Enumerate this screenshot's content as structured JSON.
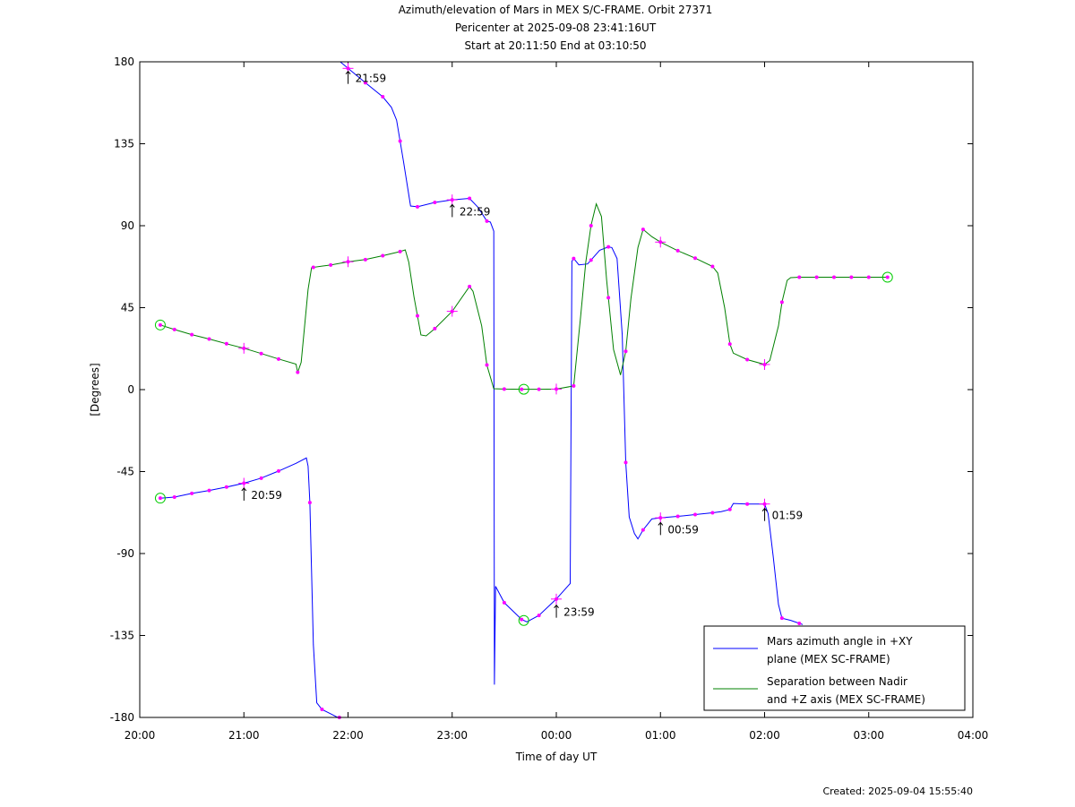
{
  "chart_data": {
    "type": "line",
    "title_lines": [
      "Azimuth/elevation of Mars in MEX S/C-FRAME.  Orbit 27371",
      "Pericenter at 2025-09-08 23:41:16UT",
      "Start at 20:11:50 End at 03:10:50"
    ],
    "xlabel": "Time of day UT",
    "ylabel": "[Degrees]",
    "xlim": [
      "20:00",
      "04:00"
    ],
    "ylim": [
      -180,
      180
    ],
    "x_ticks": [
      "20:00",
      "21:00",
      "22:00",
      "23:00",
      "00:00",
      "01:00",
      "02:00",
      "03:00",
      "04:00"
    ],
    "y_ticks": [
      "180",
      "135",
      "90",
      "45",
      "0",
      "-45",
      "-90",
      "-135",
      "-180"
    ],
    "grid": false,
    "legend_position": "bottom-right",
    "series": [
      {
        "name": "Mars azimuth angle in +XY plane (MEX SC-FRAME)",
        "legend_lines": [
          "Mars azimuth angle in +XY",
          "plane (MEX SC-FRAME)"
        ],
        "color": "#0000ff",
        "points": [
          [
            "20:11:50",
            -59.6
          ],
          [
            "20:20",
            -59
          ],
          [
            "20:30",
            -57
          ],
          [
            "20:40",
            -55.4
          ],
          [
            "20:50",
            -53.5
          ],
          [
            "21:00",
            -51.4
          ],
          [
            "21:10",
            -48.6
          ],
          [
            "21:20",
            -44.7
          ],
          [
            "21:30",
            -40.5
          ],
          [
            "21:36",
            -37.5
          ],
          [
            "21:37",
            -42
          ],
          [
            "21:38",
            -62
          ],
          [
            "21:40",
            -140
          ],
          [
            "21:42",
            -172
          ],
          [
            "21:45",
            -175.6
          ],
          [
            "21:50",
            -178
          ],
          [
            "21:54",
            -180
          ],
          [
            "21:55",
            -180
          ],
          [
            "21:55:30",
            180
          ],
          [
            "22:00",
            176.4
          ],
          [
            "22:10",
            168.5
          ],
          [
            "22:20",
            160.8
          ],
          [
            "22:25",
            155
          ],
          [
            "22:28",
            148
          ],
          [
            "22:32",
            125
          ],
          [
            "22:36",
            100.8
          ],
          [
            "22:40",
            100.4
          ],
          [
            "22:50",
            102.8
          ],
          [
            "23:00",
            104.2
          ],
          [
            "23:10",
            105
          ],
          [
            "23:15",
            100
          ],
          [
            "23:20",
            92.5
          ],
          [
            "23:22",
            92
          ],
          [
            "23:24",
            87
          ],
          [
            "23:24:20",
            -162
          ],
          [
            "23:25",
            -108
          ],
          [
            "23:30",
            -117
          ],
          [
            "23:40",
            -126.2
          ],
          [
            "23:43",
            -127.5
          ],
          [
            "23:50",
            -124
          ],
          [
            "24:00",
            -115
          ],
          [
            "24:08",
            -106.5
          ],
          [
            "24:09",
            70.5
          ],
          [
            "24:10",
            72
          ],
          [
            "24:13",
            68.5
          ],
          [
            "24:18",
            69
          ],
          [
            "24:25",
            76.5
          ],
          [
            "24:30",
            78.4
          ],
          [
            "24:32",
            78
          ],
          [
            "24:35",
            72
          ],
          [
            "24:38",
            30
          ],
          [
            "24:40",
            -40
          ],
          [
            "24:42",
            -70
          ],
          [
            "24:45",
            -79
          ],
          [
            "24:47",
            -82
          ],
          [
            "24:50",
            -77
          ],
          [
            "24:55",
            -71
          ],
          [
            "25:00",
            -70.4
          ],
          [
            "25:10",
            -69.6
          ],
          [
            "25:20",
            -68.6
          ],
          [
            "25:30",
            -67.6
          ],
          [
            "25:35",
            -67
          ],
          [
            "25:40",
            -65.8
          ],
          [
            "25:42",
            -62.5
          ],
          [
            "25:50",
            -62.8
          ],
          [
            "26:00",
            -62.8
          ],
          [
            "26:02",
            -68
          ],
          [
            "26:05",
            -92
          ],
          [
            "26:08",
            -118
          ],
          [
            "26:10",
            -125.5
          ],
          [
            "26:15",
            -126.7
          ],
          [
            "26:22",
            -129
          ]
        ],
        "markers": [
          "20:11:50",
          "20:20",
          "20:30",
          "20:40",
          "20:50",
          "21:00",
          "21:10",
          "21:20",
          "21:38",
          "21:45",
          "21:55",
          "22:00",
          "22:10",
          "22:20",
          "22:30",
          "22:40",
          "22:50",
          "23:00",
          "23:10",
          "23:20",
          "23:30",
          "23:40",
          "23:50",
          "24:00",
          "24:10",
          "24:20",
          "24:30",
          "24:40",
          "24:50",
          "25:00",
          "25:10",
          "25:20",
          "25:30",
          "25:40",
          "25:50",
          "26:00",
          "26:10",
          "26:20"
        ]
      },
      {
        "name": "Separation between Nadir and +Z axis (MEX SC-FRAME)",
        "legend_lines": [
          "Separation between Nadir",
          "and +Z axis (MEX SC-FRAME)"
        ],
        "color": "#008000",
        "points": [
          [
            "20:11:50",
            35.5
          ],
          [
            "20:20",
            33
          ],
          [
            "20:30",
            30.2
          ],
          [
            "20:40",
            27.8
          ],
          [
            "20:50",
            25.2
          ],
          [
            "21:00",
            22.7
          ],
          [
            "21:10",
            19.8
          ],
          [
            "21:20",
            16.8
          ],
          [
            "21:30",
            14
          ],
          [
            "21:31",
            9.5
          ],
          [
            "21:33",
            15
          ],
          [
            "21:37",
            55
          ],
          [
            "21:39",
            67
          ],
          [
            "21:45",
            67.8
          ],
          [
            "21:50",
            68.4
          ],
          [
            "22:00",
            70.2
          ],
          [
            "22:10",
            71.4
          ],
          [
            "22:20",
            73.5
          ],
          [
            "22:30",
            75.8
          ],
          [
            "22:33",
            76.7
          ],
          [
            "22:35",
            70
          ],
          [
            "22:38",
            51
          ],
          [
            "22:42",
            30
          ],
          [
            "22:45",
            29.5
          ],
          [
            "22:50",
            33.5
          ],
          [
            "23:00",
            43
          ],
          [
            "23:10",
            56.6
          ],
          [
            "23:12",
            54
          ],
          [
            "23:17",
            35
          ],
          [
            "23:20",
            13.5
          ],
          [
            "23:24",
            0.5
          ],
          [
            "23:30",
            0.3
          ],
          [
            "23:40",
            0.2
          ],
          [
            "23:50",
            0.2
          ],
          [
            "24:00",
            0.3
          ],
          [
            "24:10",
            2
          ],
          [
            "24:14",
            40
          ],
          [
            "24:17",
            70
          ],
          [
            "24:20",
            90
          ],
          [
            "24:23",
            102
          ],
          [
            "24:26",
            95
          ],
          [
            "24:29",
            60
          ],
          [
            "24:33",
            22
          ],
          [
            "24:37",
            8
          ],
          [
            "24:40",
            21
          ],
          [
            "24:43",
            50
          ],
          [
            "24:47",
            78
          ],
          [
            "24:50",
            88
          ],
          [
            "24:55",
            84
          ],
          [
            "25:00",
            81
          ],
          [
            "25:10",
            76.3
          ],
          [
            "25:20",
            72.2
          ],
          [
            "25:30",
            67.6
          ],
          [
            "25:33",
            64
          ],
          [
            "25:37",
            45
          ],
          [
            "25:40",
            25
          ],
          [
            "25:42",
            20
          ],
          [
            "25:50",
            16.5
          ],
          [
            "26:00",
            13.8
          ],
          [
            "26:03",
            16
          ],
          [
            "26:08",
            35
          ],
          [
            "26:10",
            48
          ],
          [
            "26:13",
            60
          ],
          [
            "26:15",
            61.5
          ],
          [
            "26:20",
            61.7
          ],
          [
            "26:30",
            61.7
          ],
          [
            "26:40",
            61.7
          ],
          [
            "26:50",
            61.7
          ],
          [
            "27:00",
            61.7
          ],
          [
            "27:10:50",
            61.7
          ]
        ],
        "markers": [
          "20:11:50",
          "20:20",
          "20:30",
          "20:40",
          "20:50",
          "21:00",
          "21:10",
          "21:20",
          "21:31",
          "21:40",
          "21:50",
          "22:00",
          "22:10",
          "22:20",
          "22:30",
          "22:40",
          "22:50",
          "23:00",
          "23:10",
          "23:20",
          "23:30",
          "23:40",
          "23:50",
          "24:00",
          "24:10",
          "24:20",
          "24:30",
          "24:40",
          "24:50",
          "25:00",
          "25:10",
          "25:20",
          "25:30",
          "25:40",
          "25:50",
          "26:00",
          "26:10",
          "26:20",
          "26:30",
          "26:40",
          "26:50",
          "27:00",
          "27:10:50"
        ]
      }
    ],
    "hour_markers": [
      {
        "series": 0,
        "time": "21:00"
      },
      {
        "series": 0,
        "time": "22:00"
      },
      {
        "series": 0,
        "time": "23:00"
      },
      {
        "series": 0,
        "time": "24:00"
      },
      {
        "series": 0,
        "time": "25:00"
      },
      {
        "series": 0,
        "time": "26:00"
      },
      {
        "series": 1,
        "time": "21:00"
      },
      {
        "series": 1,
        "time": "22:00"
      },
      {
        "series": 1,
        "time": "23:00"
      },
      {
        "series": 1,
        "time": "24:00"
      },
      {
        "series": 1,
        "time": "25:00"
      },
      {
        "series": 1,
        "time": "26:00"
      }
    ],
    "event_circles": [
      {
        "series": 0,
        "time": "20:11:50"
      },
      {
        "series": 0,
        "time": "23:41:16"
      },
      {
        "series": 1,
        "time": "20:11:50"
      },
      {
        "series": 1,
        "time": "23:41:16"
      },
      {
        "series": 1,
        "time": "27:10:50"
      }
    ],
    "annotations": [
      {
        "text": "20:59",
        "series": 0,
        "time": "20:59"
      },
      {
        "text": "21:59",
        "series": 0,
        "time": "21:59"
      },
      {
        "text": "22:59",
        "series": 0,
        "time": "22:59"
      },
      {
        "text": "23:59",
        "series": 0,
        "time": "23:59"
      },
      {
        "text": "00:59",
        "series": 0,
        "time": "00:59"
      },
      {
        "text": "01:59",
        "series": 0,
        "time": "01:59"
      }
    ],
    "marker_color": "#ff00ff",
    "event_color": "#00cc00"
  },
  "footer": {
    "created": "Created: 2025-09-04 15:55:40"
  }
}
